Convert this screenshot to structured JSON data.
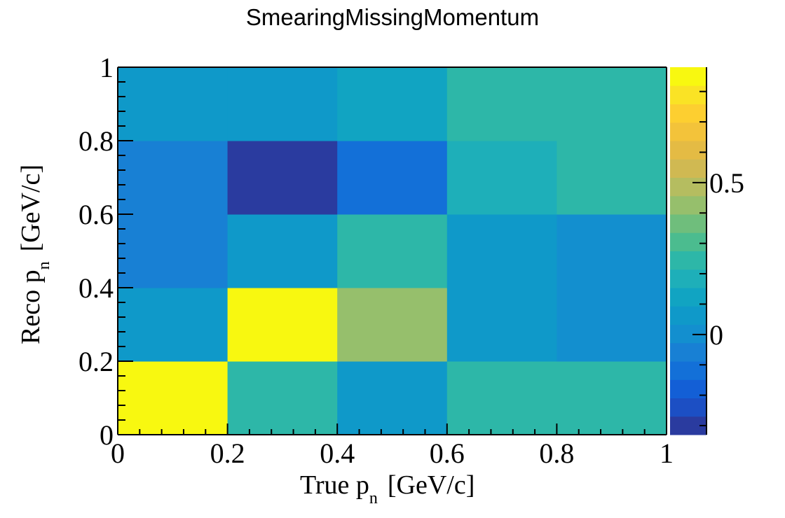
{
  "chart_data": {
    "type": "heatmap",
    "title": "SmearingMissingMomentum",
    "xlabel": {
      "main": "True p",
      "sub": "n",
      "unit": "[GeV/c]"
    },
    "ylabel": {
      "main": "Reco p",
      "sub": "n",
      "unit": "[GeV/c]"
    },
    "x_bins": [
      0,
      0.2,
      0.4,
      0.6,
      0.8,
      1.0
    ],
    "y_bins": [
      0,
      0.2,
      0.4,
      0.6,
      0.8,
      1.0
    ],
    "xlim": [
      0,
      1
    ],
    "ylim": [
      0,
      1
    ],
    "x_ticks": [
      "0",
      "0.2",
      "0.4",
      "0.6",
      "0.8",
      "1"
    ],
    "y_ticks": [
      "0",
      "0.2",
      "0.4",
      "0.6",
      "0.8",
      "1"
    ],
    "z_range": [
      -0.33,
      0.88
    ],
    "z_ticks": [
      "0",
      "0.5"
    ],
    "z_tick_values": [
      0,
      0.5
    ],
    "values": [
      [
        0.88,
        0.25,
        0.05,
        0.25,
        0.25
      ],
      [
        0.05,
        0.88,
        0.45,
        0.05,
        -0.02
      ],
      [
        -0.05,
        0.05,
        0.25,
        0.05,
        -0.02
      ],
      [
        -0.05,
        -0.3,
        -0.1,
        0.2,
        0.25
      ],
      [
        0.05,
        0.05,
        0.15,
        0.25,
        0.25
      ]
    ],
    "palette": [
      "#2a3b9f",
      "#1c4fc4",
      "#135fd6",
      "#1370d8",
      "#1880d4",
      "#138fcf",
      "#0f99c9",
      "#11a4c2",
      "#1eafb9",
      "#2db7a8",
      "#4bbc8f",
      "#6fbe7c",
      "#96bf6c",
      "#b5bd60",
      "#d0b952",
      "#e4bb44",
      "#f3c33a",
      "#fdcf30",
      "#fae325",
      "#f8f810"
    ],
    "grid": false
  }
}
